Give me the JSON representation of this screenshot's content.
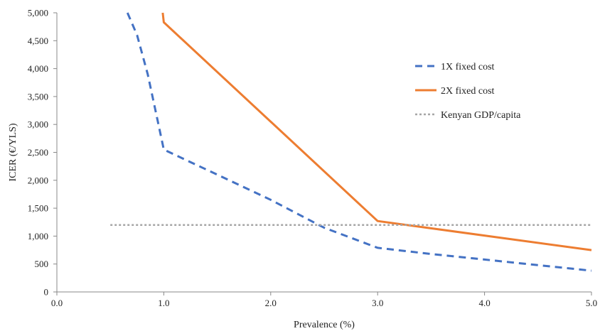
{
  "chart_data": {
    "type": "line",
    "title": "",
    "xlabel": "Prevalence (%)",
    "ylabel": "ICER (€/YLS)",
    "xlim": [
      0,
      5
    ],
    "ylim": [
      0,
      5000
    ],
    "x_ticks": [
      0,
      1,
      2,
      3,
      4,
      5
    ],
    "x_tick_labels": [
      "0.0",
      "1.0",
      "2.0",
      "3.0",
      "4.0",
      "5.0"
    ],
    "y_ticks": [
      0,
      500,
      1000,
      1500,
      2000,
      2500,
      3000,
      3500,
      4000,
      4500,
      5000
    ],
    "y_tick_labels": [
      "0",
      "500",
      "1,000",
      "1,500",
      "2,000",
      "2,500",
      "3,000",
      "3,500",
      "4,000",
      "4,500",
      "5,000"
    ],
    "grid": false,
    "legend_position": "right",
    "series": [
      {
        "name": "1X fixed cost",
        "color": "#4472C4",
        "style": "dashed",
        "x": [
          0.66,
          0.75,
          0.85,
          0.95,
          1.0,
          1.5,
          2.0,
          2.5,
          3.0,
          3.5,
          4.0,
          4.5,
          5.0
        ],
        "y": [
          5000,
          4600,
          3900,
          3000,
          2550,
          2100,
          1650,
          1150,
          790,
          680,
          580,
          480,
          380
        ]
      },
      {
        "name": "2X fixed cost",
        "color": "#ED7D31",
        "style": "solid",
        "x": [
          0.99,
          1.0,
          3.0,
          5.0
        ],
        "y": [
          5000,
          4830,
          1270,
          750
        ]
      },
      {
        "name": "Kenyan GDP/capita",
        "color": "#A6A6A6",
        "style": "dotted",
        "x": [
          0.5,
          5.0
        ],
        "y": [
          1200,
          1200
        ]
      }
    ]
  }
}
